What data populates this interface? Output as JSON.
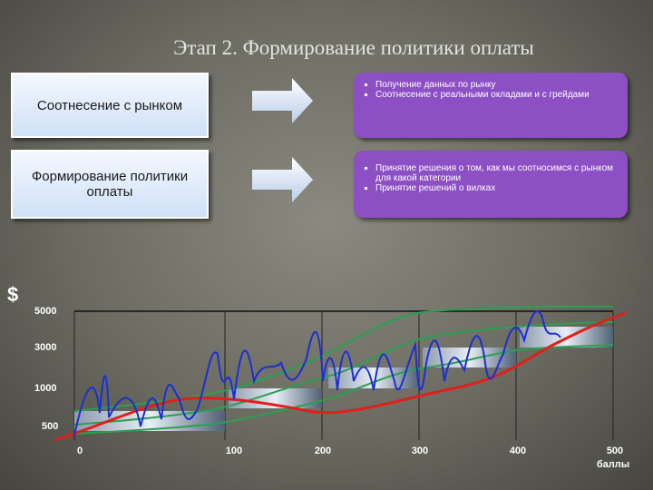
{
  "title": "Этап 2. Формирование политики оплаты",
  "rows": [
    {
      "label": "Соотнесение с рынком",
      "bullets": [
        "Получение данных по рынку",
        "Соотнесение с реальными окладами и с грейдами"
      ]
    },
    {
      "label": "Формирование политики оплаты",
      "bullets": [
        "Принятие решения о том, как мы соотносимся с рынком для какой категории",
        "Принятие решений о вилках"
      ]
    }
  ],
  "chart": {
    "y_label": "$",
    "x_label": "баллы",
    "yticks": [
      "5000",
      "3000",
      "1000",
      "500"
    ],
    "xticks": [
      "0",
      "100",
      "200",
      "300",
      "400",
      "500"
    ]
  }
}
